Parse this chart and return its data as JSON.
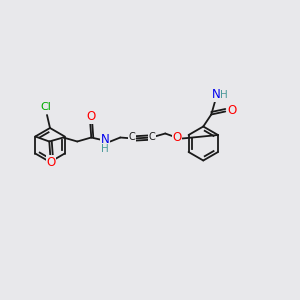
{
  "bg_color": "#e8e8eb",
  "C": "#1a1a1a",
  "O": "#ff0000",
  "N": "#0000ee",
  "Cl": "#00aa00",
  "H": "#4a9a9a",
  "lw": 1.3,
  "fs": 8.5,
  "r_big": 17,
  "r_small": 15
}
